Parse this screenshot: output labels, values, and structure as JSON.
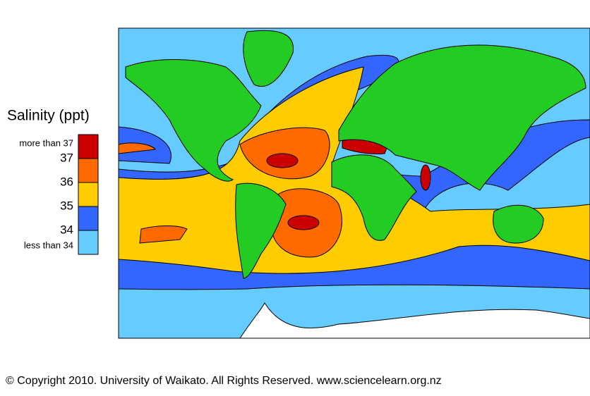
{
  "legend": {
    "title": "Salinity (ppt)",
    "swatches": [
      {
        "label": "more than 37",
        "color": "#cc0000"
      },
      {
        "label": 37,
        "color": "#ff6a00"
      },
      {
        "label": 36,
        "color": "#ffcc00"
      },
      {
        "label": 35,
        "color": "#3366ff"
      },
      {
        "label": 34,
        "color": "#66ccff"
      }
    ],
    "bottom_label": "less than 34"
  },
  "footer": {
    "copyright": "© Copyright 2010. University of Waikato. All Rights Reserved. www.sciencelearn.org.nz"
  }
}
